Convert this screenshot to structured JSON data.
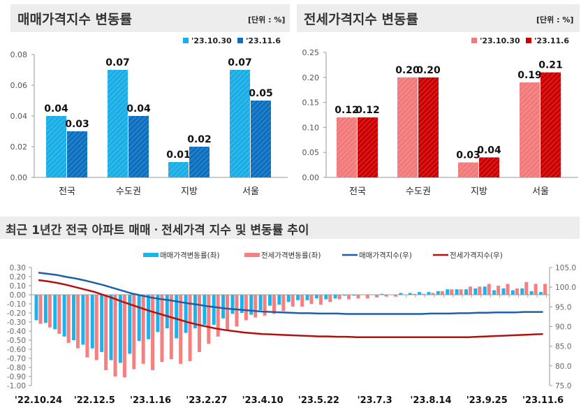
{
  "panels": {
    "sale_title": "매매가격지수 변동률",
    "jeonse_title": "전세가격지수 변동률",
    "unit": "[단위 : %]",
    "trend_title": "최근 1년간 전국 아파트 매매ㆍ전세가격 지수 및 변동률 추이"
  },
  "chart_data": [
    {
      "type": "bar",
      "title": "매매가격지수 변동률",
      "categories": [
        "전국",
        "수도권",
        "지방",
        "서울"
      ],
      "ylim": [
        0,
        0.08
      ],
      "yticks": [
        "0.00",
        "0.02",
        "0.04",
        "0.06",
        "0.08"
      ],
      "legend": "top-right",
      "series": [
        {
          "name": "'23.10.30",
          "values": [
            0.04,
            0.07,
            0.01,
            0.07
          ],
          "color": "#1aaee6"
        },
        {
          "name": "'23.11.6",
          "values": [
            0.03,
            0.04,
            0.02,
            0.05
          ],
          "color": "#0d6fc0"
        }
      ]
    },
    {
      "type": "bar",
      "title": "전세가격지수 변동률",
      "categories": [
        "전국",
        "수도권",
        "지방",
        "서울"
      ],
      "ylim": [
        0,
        0.25
      ],
      "yticks": [
        "0.00",
        "0.05",
        "0.10",
        "0.15",
        "0.20",
        "0.25"
      ],
      "legend": "top-right",
      "series": [
        {
          "name": "'23.10.30",
          "values": [
            0.12,
            0.2,
            0.03,
            0.19
          ],
          "color": "#f27a7a"
        },
        {
          "name": "'23.11.6",
          "values": [
            0.12,
            0.2,
            0.04,
            0.21
          ],
          "color": "#cc0000"
        }
      ]
    },
    {
      "type": "bar+line",
      "title": "최근 1년간 전국 아파트 매매ㆍ전세가격 지수 및 변동률 추이",
      "legend": "top",
      "x_ticks": [
        "'22.10.24",
        "'22.12.5",
        "'23.1.16",
        "'23.2.27",
        "'23.4.10",
        "'23.5.22",
        "'23.7.3",
        "'23.8.14",
        "'23.9.25",
        "'23.11.6"
      ],
      "ylim_left": [
        -1.0,
        0.3
      ],
      "yticks_left": [
        "0.30",
        "0.20",
        "0.10",
        "0.00",
        "-0.10",
        "-0.20",
        "-0.30",
        "-0.40",
        "-0.50",
        "-0.60",
        "-0.70",
        "-0.80",
        "-0.90",
        "-1.00"
      ],
      "ylim_right": [
        75,
        105
      ],
      "yticks_right": [
        "105.0",
        "100.0",
        "95.0",
        "90.0",
        "85.0",
        "80.0",
        "75.0"
      ],
      "series": [
        {
          "name": "매매가격변동률(좌)",
          "axis": "left",
          "kind": "bar",
          "color": "#17b4ef",
          "values": [
            -0.28,
            -0.31,
            -0.38,
            -0.46,
            -0.5,
            -0.55,
            -0.59,
            -0.63,
            -0.72,
            -0.75,
            -0.65,
            -0.51,
            -0.49,
            -0.41,
            -0.37,
            -0.48,
            -0.42,
            -0.37,
            -0.33,
            -0.33,
            -0.26,
            -0.21,
            -0.2,
            -0.22,
            -0.17,
            -0.12,
            -0.11,
            -0.08,
            -0.06,
            -0.06,
            -0.04,
            -0.05,
            -0.04,
            -0.01,
            -0.01,
            0.0,
            0.0,
            0.01,
            0.0,
            0.02,
            0.02,
            0.03,
            0.03,
            0.04,
            0.06,
            0.06,
            0.06,
            0.07,
            0.09,
            0.05,
            0.07,
            0.05,
            0.07,
            0.04,
            0.03
          ]
        },
        {
          "name": "전세가격변동률(좌)",
          "axis": "left",
          "kind": "bar",
          "color": "#f77f7f",
          "values": [
            -0.32,
            -0.36,
            -0.43,
            -0.53,
            -0.59,
            -0.69,
            -0.72,
            -0.83,
            -0.9,
            -0.91,
            -0.82,
            -0.76,
            -0.83,
            -0.74,
            -0.71,
            -0.76,
            -0.73,
            -0.63,
            -0.54,
            -0.46,
            -0.39,
            -0.35,
            -0.28,
            -0.25,
            -0.23,
            -0.21,
            -0.18,
            -0.13,
            -0.13,
            -0.1,
            -0.11,
            -0.08,
            -0.05,
            -0.05,
            -0.04,
            -0.04,
            -0.03,
            -0.02,
            -0.02,
            0.0,
            0.01,
            0.01,
            0.02,
            0.04,
            0.06,
            0.06,
            0.09,
            0.09,
            0.12,
            0.1,
            0.12,
            0.07,
            0.14,
            0.12,
            0.12
          ]
        },
        {
          "name": "매매가격지수(우)",
          "axis": "right",
          "kind": "line",
          "color": "#1f5fa8",
          "values": [
            103.7,
            103.4,
            103.1,
            102.6,
            102.2,
            101.7,
            101.1,
            100.5,
            99.8,
            99.1,
            98.4,
            97.9,
            97.4,
            97.0,
            96.7,
            96.3,
            95.9,
            95.6,
            95.2,
            94.9,
            94.6,
            94.4,
            94.2,
            94.0,
            93.8,
            93.7,
            93.6,
            93.5,
            93.4,
            93.4,
            93.3,
            93.3,
            93.3,
            93.2,
            93.2,
            93.2,
            93.2,
            93.2,
            93.2,
            93.2,
            93.2,
            93.2,
            93.3,
            93.3,
            93.3,
            93.4,
            93.4,
            93.5,
            93.5,
            93.6,
            93.6,
            93.6,
            93.7,
            93.7,
            93.7
          ]
        },
        {
          "name": "전세가격지수(우)",
          "axis": "right",
          "kind": "line",
          "color": "#b31010",
          "values": [
            101.8,
            101.5,
            101.1,
            100.6,
            100.0,
            99.4,
            98.8,
            98.0,
            97.2,
            96.3,
            95.5,
            94.7,
            93.9,
            93.2,
            92.5,
            91.8,
            91.1,
            90.5,
            90.0,
            89.5,
            89.1,
            88.8,
            88.5,
            88.3,
            88.1,
            88.0,
            87.9,
            87.8,
            87.7,
            87.6,
            87.5,
            87.5,
            87.4,
            87.4,
            87.3,
            87.3,
            87.3,
            87.3,
            87.3,
            87.3,
            87.3,
            87.3,
            87.3,
            87.3,
            87.3,
            87.3,
            87.3,
            87.4,
            87.5,
            87.6,
            87.7,
            87.8,
            87.9,
            88.0,
            88.1
          ]
        }
      ]
    }
  ]
}
